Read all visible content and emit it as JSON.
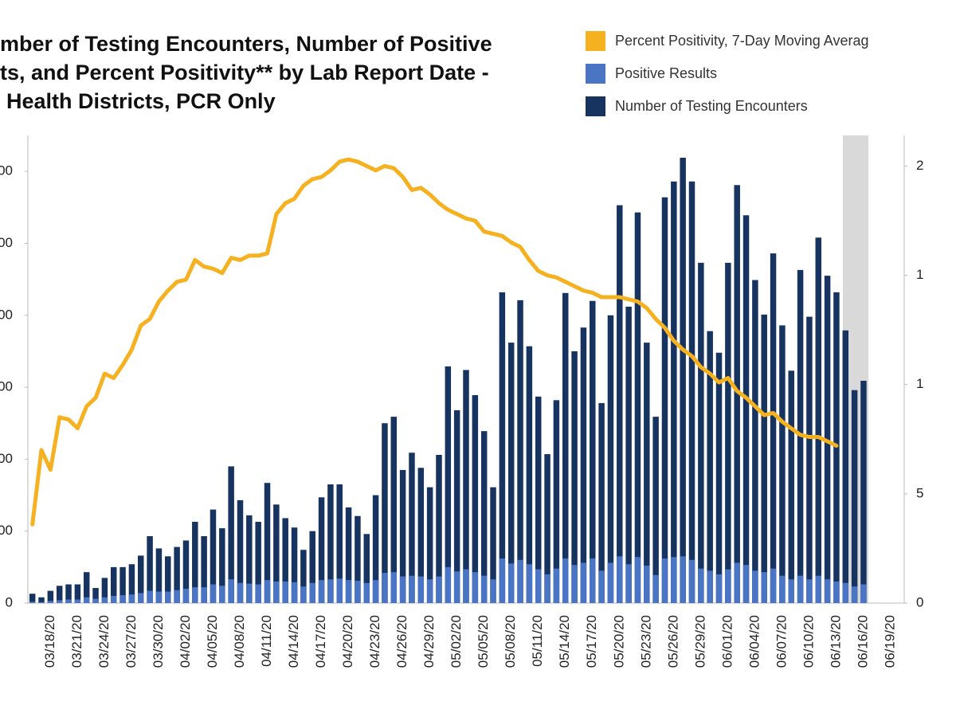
{
  "chart_data": {
    "type": "bar",
    "title": [
      "mber of Testing Encounters, Number of Positive",
      "ts, and Percent Positivity** by Lab Report Date -",
      "Health Districts, PCR Only"
    ],
    "categories": [
      null,
      null,
      "03/18/20",
      null,
      null,
      "03/21/20",
      null,
      null,
      "03/24/20",
      null,
      null,
      "03/27/20",
      null,
      null,
      "03/30/20",
      null,
      null,
      "04/02/20",
      null,
      null,
      "04/05/20",
      null,
      null,
      "04/08/20",
      null,
      null,
      "04/11/20",
      null,
      null,
      "04/14/20",
      null,
      null,
      "04/17/20",
      null,
      null,
      "04/20/20",
      null,
      null,
      "04/23/20",
      null,
      null,
      "04/26/20",
      null,
      null,
      "04/29/20",
      null,
      null,
      "05/02/20",
      null,
      null,
      "05/05/20",
      null,
      null,
      "05/08/20",
      null,
      null,
      "05/11/20",
      null,
      null,
      "05/14/20",
      null,
      null,
      "05/17/20",
      null,
      null,
      "05/20/20",
      null,
      null,
      "05/23/20",
      null,
      null,
      "05/26/20",
      null,
      null,
      "05/29/20",
      null,
      null,
      "06/01/20",
      null,
      null,
      "06/04/20",
      null,
      null,
      "06/07/20",
      null,
      null,
      "06/10/20",
      null,
      null,
      "06/13/20",
      null,
      null,
      "06/16/20",
      null,
      null,
      "06/19/20",
      null
    ],
    "series": [
      {
        "name": "Percent Positivity, 7-Day Moving Averag",
        "type": "line",
        "axis": "y2",
        "color": "#f5b120",
        "values": [
          3.6,
          7.0,
          6.1,
          8.5,
          8.4,
          8.0,
          9.0,
          9.4,
          10.5,
          10.3,
          10.9,
          11.6,
          12.7,
          13.0,
          13.8,
          14.3,
          14.7,
          14.8,
          15.7,
          15.4,
          15.3,
          15.1,
          15.8,
          15.7,
          15.9,
          15.9,
          16.0,
          17.8,
          18.3,
          18.5,
          19.1,
          19.4,
          19.5,
          19.8,
          20.2,
          20.3,
          20.2,
          20.0,
          19.8,
          20.0,
          19.9,
          19.5,
          18.9,
          19.0,
          18.7,
          18.3,
          18.0,
          17.8,
          17.6,
          17.5,
          17.0,
          16.9,
          16.8,
          16.5,
          16.3,
          15.7,
          15.2,
          15.0,
          14.9,
          14.7,
          14.5,
          14.3,
          14.2,
          14.0,
          14.0,
          14.0,
          13.9,
          13.8,
          13.5,
          13.0,
          12.6,
          12.0,
          11.6,
          11.3,
          10.8,
          10.5,
          10.1,
          10.3,
          9.7,
          9.4,
          9.0,
          8.6,
          8.7,
          8.3,
          8.0,
          7.7,
          7.6,
          7.6,
          7.4,
          7.2,
          null,
          null,
          null,
          null,
          null,
          null,
          null
        ]
      },
      {
        "name": "Positive Results",
        "type": "bar",
        "color": "#4a74c4",
        "values": [
          20,
          15,
          30,
          40,
          50,
          50,
          80,
          60,
          80,
          100,
          110,
          120,
          140,
          170,
          160,
          160,
          180,
          200,
          220,
          220,
          260,
          240,
          330,
          280,
          270,
          260,
          320,
          300,
          300,
          290,
          230,
          280,
          320,
          330,
          340,
          320,
          310,
          280,
          320,
          420,
          430,
          370,
          380,
          370,
          330,
          370,
          500,
          440,
          470,
          430,
          380,
          330,
          620,
          550,
          600,
          540,
          470,
          400,
          480,
          620,
          530,
          560,
          620,
          450,
          560,
          650,
          540,
          640,
          520,
          390,
          620,
          640,
          650,
          600,
          480,
          450,
          400,
          470,
          560,
          530,
          450,
          430,
          480,
          380,
          330,
          380,
          330,
          380,
          330,
          300,
          280,
          230,
          260,
          null,
          null,
          null,
          null
        ]
      },
      {
        "name": "Number of Testing Encounters",
        "type": "bar",
        "color": "#17335f",
        "values": [
          130,
          80,
          170,
          240,
          260,
          260,
          430,
          210,
          350,
          500,
          500,
          540,
          660,
          930,
          760,
          650,
          780,
          870,
          1130,
          930,
          1300,
          1040,
          1900,
          1430,
          1220,
          1130,
          1670,
          1370,
          1180,
          1050,
          740,
          1000,
          1470,
          1650,
          1650,
          1330,
          1210,
          960,
          1500,
          2500,
          2590,
          1850,
          2090,
          1880,
          1610,
          2060,
          3290,
          2680,
          3240,
          2890,
          2390,
          1610,
          4320,
          3620,
          4210,
          3570,
          2870,
          2070,
          2820,
          4310,
          3500,
          3830,
          4200,
          2780,
          4000,
          5530,
          4120,
          5430,
          3620,
          2590,
          5640,
          5860,
          6190,
          5860,
          4730,
          3780,
          3480,
          4730,
          5810,
          5390,
          4490,
          4010,
          4860,
          3860,
          3230,
          4630,
          3980,
          5080,
          4550,
          4320,
          3790,
          2960,
          3090,
          null,
          null,
          null,
          null
        ]
      }
    ],
    "ylim": [
      0,
      6500
    ],
    "yticks": [
      0,
      {
        "value": 1000,
        "label": "00"
      },
      {
        "value": 2000,
        "label": "00"
      },
      {
        "value": 3000,
        "label": "00"
      },
      {
        "value": 4000,
        "label": "00"
      },
      {
        "value": 5000,
        "label": "00"
      },
      {
        "value": 6000,
        "label": "00"
      }
    ],
    "y2lim": [
      0,
      21.4
    ],
    "y2ticks": [
      0,
      5,
      {
        "value": 10,
        "label": "1"
      },
      {
        "value": 15,
        "label": "1"
      },
      {
        "value": 20,
        "label": "2"
      }
    ],
    "grid": false,
    "legend": "top-right"
  }
}
